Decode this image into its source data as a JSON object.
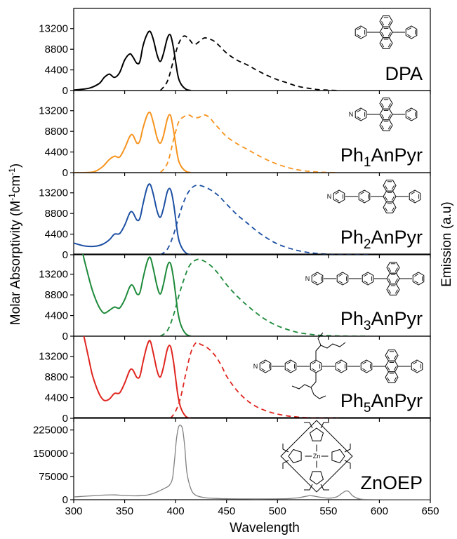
{
  "chart_data": {
    "type": "line",
    "xlabel": "Wavelength",
    "ylabel_left": "Molar Absorptivity (M",
    "ylabel_left_exp1": "-1",
    "ylabel_left_mid": "cm",
    "ylabel_left_exp2": "-1",
    "ylabel_left_end": ")",
    "ylabel_right": "Emission (a.u)",
    "xlim": [
      300,
      650
    ],
    "xticks": [
      300,
      350,
      400,
      450,
      500,
      550,
      600,
      650
    ],
    "grid": false,
    "panels": [
      {
        "label": "DPA",
        "label_sub": "",
        "label_suffix": "",
        "color": "#000000",
        "ylim": [
          0,
          17500
        ],
        "yticks": [
          0,
          4400,
          8800,
          13200
        ],
        "yticklabels": [
          "0",
          "4400",
          "8800",
          "13200"
        ],
        "absorption": {
          "x": [
            300,
            315,
            325,
            330,
            335,
            340,
            345,
            350,
            355,
            358,
            362,
            365,
            368,
            372,
            375,
            378,
            382,
            385,
            388,
            392,
            395,
            398,
            402,
            405,
            410,
            415
          ],
          "y": [
            100,
            500,
            1500,
            2800,
            3500,
            2800,
            3800,
            6500,
            7800,
            7200,
            5800,
            6200,
            9500,
            12000,
            12600,
            11000,
            7500,
            6200,
            7800,
            11200,
            11800,
            9000,
            3500,
            1500,
            300,
            0
          ]
        },
        "emission": {
          "x": [
            385,
            392,
            398,
            403,
            408,
            413,
            418,
            423,
            428,
            433,
            438,
            443,
            450,
            460,
            470,
            480,
            490,
            500,
            510,
            520,
            530,
            540,
            550,
            560
          ],
          "y": [
            0,
            2000,
            6500,
            10000,
            11600,
            11000,
            9800,
            10400,
            11200,
            11000,
            10500,
            9500,
            8000,
            6500,
            5500,
            4300,
            3200,
            2300,
            1600,
            900,
            500,
            200,
            80,
            0
          ]
        }
      },
      {
        "label": "Ph",
        "label_sub": "1",
        "label_suffix": "AnPyr",
        "color": "#F7931E",
        "ylim": [
          0,
          17500
        ],
        "yticks": [
          0,
          4400,
          8800,
          13200
        ],
        "yticklabels": [
          "0",
          "4400",
          "8800",
          "13200"
        ],
        "absorption": {
          "x": [
            300,
            310,
            320,
            328,
            335,
            340,
            345,
            350,
            355,
            358,
            362,
            365,
            368,
            372,
            375,
            378,
            382,
            385,
            388,
            392,
            395,
            398,
            402,
            405,
            410,
            415
          ],
          "y": [
            0,
            0,
            200,
            1200,
            2800,
            3500,
            3300,
            5200,
            7700,
            8000,
            6300,
            6800,
            9500,
            12200,
            12800,
            10800,
            7300,
            6300,
            7800,
            11500,
            12200,
            9000,
            3500,
            1500,
            300,
            0
          ]
        },
        "emission": {
          "x": [
            385,
            392,
            398,
            403,
            408,
            413,
            418,
            423,
            428,
            433,
            438,
            443,
            450,
            460,
            470,
            480,
            490,
            500,
            510,
            520,
            530,
            540,
            550,
            560
          ],
          "y": [
            0,
            2000,
            7000,
            10800,
            11900,
            12300,
            11700,
            11800,
            12300,
            11800,
            10500,
            9300,
            7700,
            6200,
            5000,
            3800,
            2700,
            1800,
            1100,
            600,
            300,
            120,
            40,
            0
          ]
        }
      },
      {
        "label": "Ph",
        "label_sub": "2",
        "label_suffix": "AnPyr",
        "color": "#1C4FA3",
        "ylim": [
          0,
          17500
        ],
        "yticks": [
          0,
          4400,
          8800,
          13200
        ],
        "yticklabels": [
          "0",
          "4400",
          "8800",
          "13200"
        ],
        "absorption": {
          "x": [
            300,
            310,
            320,
            328,
            335,
            340,
            345,
            350,
            355,
            358,
            362,
            365,
            368,
            372,
            375,
            378,
            382,
            385,
            388,
            392,
            395,
            398,
            402,
            405,
            410,
            415
          ],
          "y": [
            2500,
            1900,
            1800,
            2200,
            3200,
            4400,
            4500,
            6300,
            8900,
            9000,
            7400,
            7800,
            10800,
            14300,
            15000,
            13000,
            9200,
            8000,
            9800,
            13500,
            13900,
            11000,
            4500,
            2000,
            400,
            0
          ]
        },
        "emission": {
          "x": [
            385,
            392,
            398,
            403,
            408,
            413,
            418,
            423,
            428,
            433,
            438,
            443,
            450,
            460,
            470,
            480,
            490,
            500,
            510,
            520,
            530,
            540,
            550,
            560,
            570,
            580,
            590
          ],
          "y": [
            0,
            1200,
            4300,
            8000,
            11300,
            13500,
            14600,
            14800,
            14500,
            14000,
            13300,
            12400,
            10800,
            8600,
            6800,
            5000,
            3500,
            2300,
            1500,
            900,
            500,
            250,
            120,
            60,
            20,
            0,
            0
          ]
        }
      },
      {
        "label": "Ph",
        "label_sub": "3",
        "label_suffix": "AnPyr",
        "color": "#1D8A3A",
        "ylim": [
          0,
          17500
        ],
        "yticks": [
          0,
          4400,
          8800,
          13200
        ],
        "yticklabels": [
          "0",
          "4400",
          "8800",
          "13200"
        ],
        "absorption": {
          "x": [
            309,
            313,
            318,
            322,
            326,
            330,
            335,
            340,
            345,
            350,
            355,
            358,
            362,
            365,
            368,
            372,
            375,
            378,
            382,
            385,
            388,
            392,
            395,
            398,
            402,
            405,
            410,
            415
          ],
          "y": [
            17500,
            14000,
            10000,
            7600,
            5800,
            4900,
            5500,
            6200,
            6000,
            7800,
            10500,
            10800,
            9000,
            9300,
            12300,
            15800,
            16800,
            14500,
            10500,
            9000,
            11000,
            15000,
            15500,
            12300,
            5500,
            2500,
            500,
            0
          ]
        },
        "emission": {
          "x": [
            385,
            392,
            398,
            403,
            408,
            413,
            418,
            423,
            428,
            433,
            438,
            443,
            450,
            460,
            470,
            480,
            490,
            500,
            510,
            520,
            530,
            540,
            550,
            560,
            570,
            580,
            590
          ],
          "y": [
            0,
            1200,
            4500,
            8500,
            12000,
            14800,
            16000,
            16400,
            16000,
            15300,
            14300,
            13000,
            11000,
            8600,
            6600,
            4800,
            3300,
            2200,
            1400,
            800,
            450,
            220,
            100,
            40,
            10,
            0,
            0
          ]
        }
      },
      {
        "label": "Ph",
        "label_sub": "5",
        "label_suffix": "AnPyr",
        "color": "#E0251F",
        "ylim": [
          0,
          17500
        ],
        "yticks": [
          0,
          4400,
          8800,
          13200
        ],
        "yticklabels": [
          "0",
          "4400",
          "8800",
          "13200"
        ],
        "absorption": {
          "x": [
            310,
            314,
            318,
            322,
            326,
            330,
            335,
            340,
            345,
            350,
            355,
            358,
            362,
            365,
            368,
            372,
            375,
            378,
            382,
            385,
            388,
            392,
            395,
            398,
            402,
            405,
            410,
            415
          ],
          "y": [
            17500,
            13500,
            9500,
            6800,
            4800,
            3800,
            4100,
            5300,
            5400,
            7500,
            10200,
            10300,
            8700,
            9000,
            12000,
            15500,
            16500,
            14000,
            10000,
            8800,
            10800,
            14800,
            15300,
            12000,
            5300,
            2300,
            400,
            0
          ]
        },
        "emission": {
          "x": [
            395,
            400,
            405,
            410,
            415,
            420,
            425,
            430,
            435,
            440,
            445,
            450,
            458,
            465,
            472,
            480,
            490,
            500,
            510,
            520,
            530,
            540,
            550,
            560
          ],
          "y": [
            0,
            1500,
            4500,
            9500,
            14000,
            16100,
            15700,
            15200,
            14300,
            13000,
            11200,
            9000,
            6500,
            4800,
            3500,
            2400,
            1500,
            900,
            500,
            250,
            120,
            50,
            10,
            0
          ]
        }
      },
      {
        "label": "ZnOEP",
        "label_sub": "",
        "label_suffix": "",
        "color": "#808080",
        "ylim": [
          0,
          265000
        ],
        "yticks": [
          0,
          75000,
          150000,
          225000
        ],
        "yticklabels": [
          "0",
          "75000",
          "150000",
          "225000"
        ],
        "absorption": {
          "x": [
            300,
            310,
            320,
            330,
            340,
            350,
            360,
            370,
            378,
            385,
            390,
            394,
            397,
            399,
            401,
            403,
            405,
            407,
            409,
            411,
            415,
            420,
            430,
            440,
            450,
            470,
            490,
            510,
            520,
            528,
            533,
            540,
            550,
            558,
            563,
            567,
            570,
            574,
            580,
            590,
            600,
            650
          ],
          "y": [
            9000,
            11000,
            13000,
            15000,
            15500,
            13500,
            12500,
            14000,
            20000,
            30000,
            38000,
            47000,
            70000,
            130000,
            200000,
            235000,
            240000,
            225000,
            170000,
            90000,
            35000,
            14000,
            6000,
            4000,
            3000,
            2500,
            2500,
            3500,
            6000,
            11000,
            13000,
            9000,
            5000,
            9000,
            20000,
            28000,
            26000,
            12000,
            3000,
            500,
            0,
            0
          ]
        },
        "emission": null
      }
    ]
  }
}
